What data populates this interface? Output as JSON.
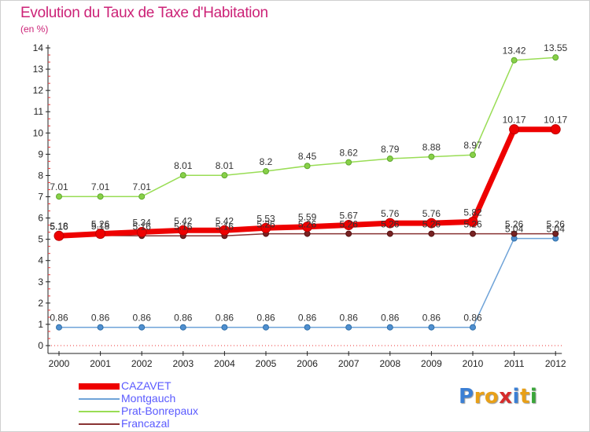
{
  "title": "Evolution du Taux de Taxe d'Habitation",
  "unit": "(en %)",
  "logo": {
    "text": "Proxiti",
    "colors": [
      "#3b7fd4",
      "#e8a018",
      "#e8a018",
      "#d62b2b",
      "#3b7fd4",
      "#e8a018",
      "#3aa63a"
    ]
  },
  "chart_data": {
    "type": "line",
    "title": "Evolution du Taux de Taxe d'Habitation",
    "ylabel": "(en %)",
    "xlabel": "",
    "x": [
      "2000",
      "2001",
      "2002",
      "2003",
      "2004",
      "2005",
      "2006",
      "2007",
      "2008",
      "2009",
      "2010",
      "2011",
      "2012"
    ],
    "ylim": [
      0,
      14
    ],
    "yticks": [
      0,
      1,
      2,
      3,
      4,
      5,
      6,
      7,
      8,
      9,
      10,
      11,
      12,
      13,
      14
    ],
    "grid": false,
    "legend": "bottom-left",
    "series": [
      {
        "name": "CAZAVET",
        "color": "#ee0000",
        "values": [
          5.16,
          5.26,
          5.34,
          5.42,
          5.42,
          5.53,
          5.59,
          5.67,
          5.76,
          5.76,
          5.82,
          10.17,
          10.17
        ],
        "labels": [
          "5.16",
          "5.26",
          "5.34",
          "5.42",
          "5.42",
          "5.53",
          "5.59",
          "5.67",
          "5.76",
          "5.76",
          "5.82",
          "10.17",
          "10.17"
        ]
      },
      {
        "name": "Montgauch",
        "color": "#5b9bd5",
        "values": [
          0.86,
          0.86,
          0.86,
          0.86,
          0.86,
          0.86,
          0.86,
          0.86,
          0.86,
          0.86,
          0.86,
          5.04,
          5.04
        ],
        "labels": [
          "0.86",
          "0.86",
          "0.86",
          "0.86",
          "0.86",
          "0.86",
          "0.86",
          "0.86",
          "0.86",
          "0.86",
          "0.86",
          "5.04",
          "5.04"
        ]
      },
      {
        "name": "Prat-Bonrepaux",
        "color": "#99dd55",
        "values": [
          7.01,
          7.01,
          7.01,
          8.01,
          8.01,
          8.2,
          8.45,
          8.62,
          8.79,
          8.88,
          8.97,
          13.42,
          13.55
        ],
        "labels": [
          "7.01",
          "7.01",
          "7.01",
          "8.01",
          "8.01",
          "8.2",
          "8.45",
          "8.62",
          "8.79",
          "8.88",
          "8.97",
          "13.42",
          "13.55"
        ]
      },
      {
        "name": "Francazal",
        "color": "#883333",
        "values": [
          5.18,
          5.18,
          5.16,
          5.16,
          5.16,
          5.26,
          5.26,
          5.26,
          5.26,
          5.26,
          5.26,
          5.26,
          5.26
        ],
        "labels": [
          "5.18",
          "5.18",
          "5.16",
          "5.16",
          "5.16",
          "5.26",
          "5.26",
          "5.26",
          "5.26",
          "5.26",
          "5.26",
          "5.26",
          "5.26"
        ]
      }
    ]
  }
}
